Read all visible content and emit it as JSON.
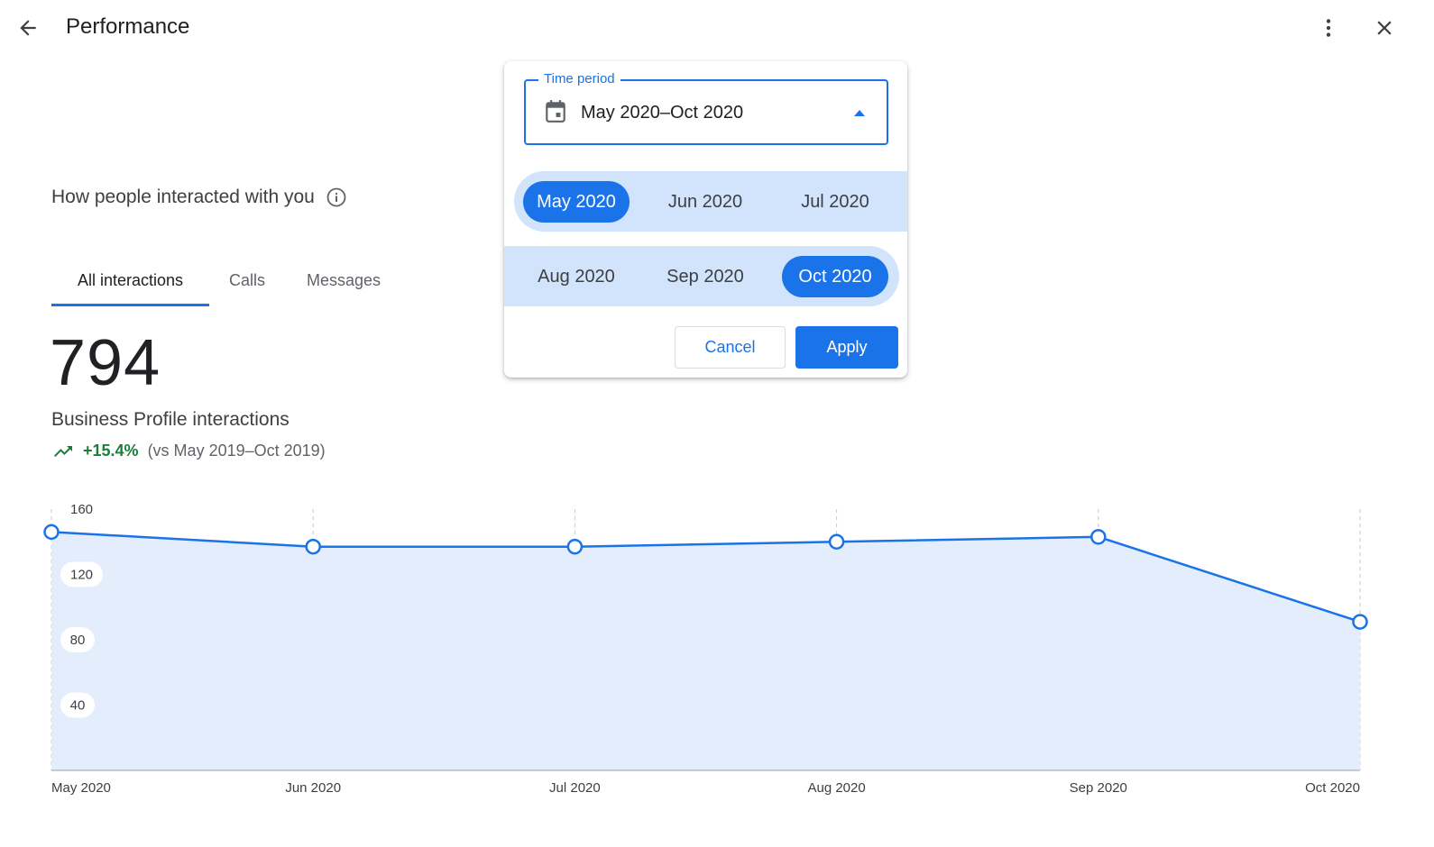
{
  "header": {
    "title": "Performance",
    "back_icon": "arrow-back-icon",
    "more_icon": "more-vert-icon",
    "close_icon": "close-icon"
  },
  "section": {
    "heading": "How people interacted with you",
    "info_icon": "info-icon"
  },
  "tabs": [
    {
      "label": "All interactions",
      "active": true
    },
    {
      "label": "Calls",
      "active": false
    },
    {
      "label": "Messages",
      "active": false
    }
  ],
  "metric": {
    "value": "794",
    "label": "Business Profile interactions",
    "trend_icon": "trending-up-icon",
    "change": "+15.4%",
    "comparison": "(vs May 2019–Oct 2019)"
  },
  "time_period_picker": {
    "legend": "Time period",
    "value": "May 2020–Oct 2020",
    "calendar_icon": "calendar-icon",
    "arrow_icon": "arrow-drop-up-icon",
    "months": [
      {
        "label": "May 2020",
        "selected": true
      },
      {
        "label": "Jun 2020",
        "selected": false
      },
      {
        "label": "Jul 2020",
        "selected": false
      },
      {
        "label": "Aug 2020",
        "selected": false
      },
      {
        "label": "Sep 2020",
        "selected": false
      },
      {
        "label": "Oct 2020",
        "selected": true
      }
    ],
    "cancel_label": "Cancel",
    "apply_label": "Apply"
  },
  "colors": {
    "accent": "#1a73e8",
    "range_fill": "#d2e3fc",
    "area_fill": "#e3edfb",
    "positive": "#188038"
  },
  "chart_data": {
    "type": "area",
    "categories": [
      "May 2020",
      "Jun 2020",
      "Jul 2020",
      "Aug 2020",
      "Sep 2020",
      "Oct 2020"
    ],
    "values": [
      146,
      137,
      137,
      140,
      143,
      91
    ],
    "yticks": [
      40,
      80,
      120,
      160
    ],
    "ylim": [
      0,
      160
    ],
    "grid": "vertical dashed",
    "title": "",
    "xlabel": "",
    "ylabel": ""
  }
}
